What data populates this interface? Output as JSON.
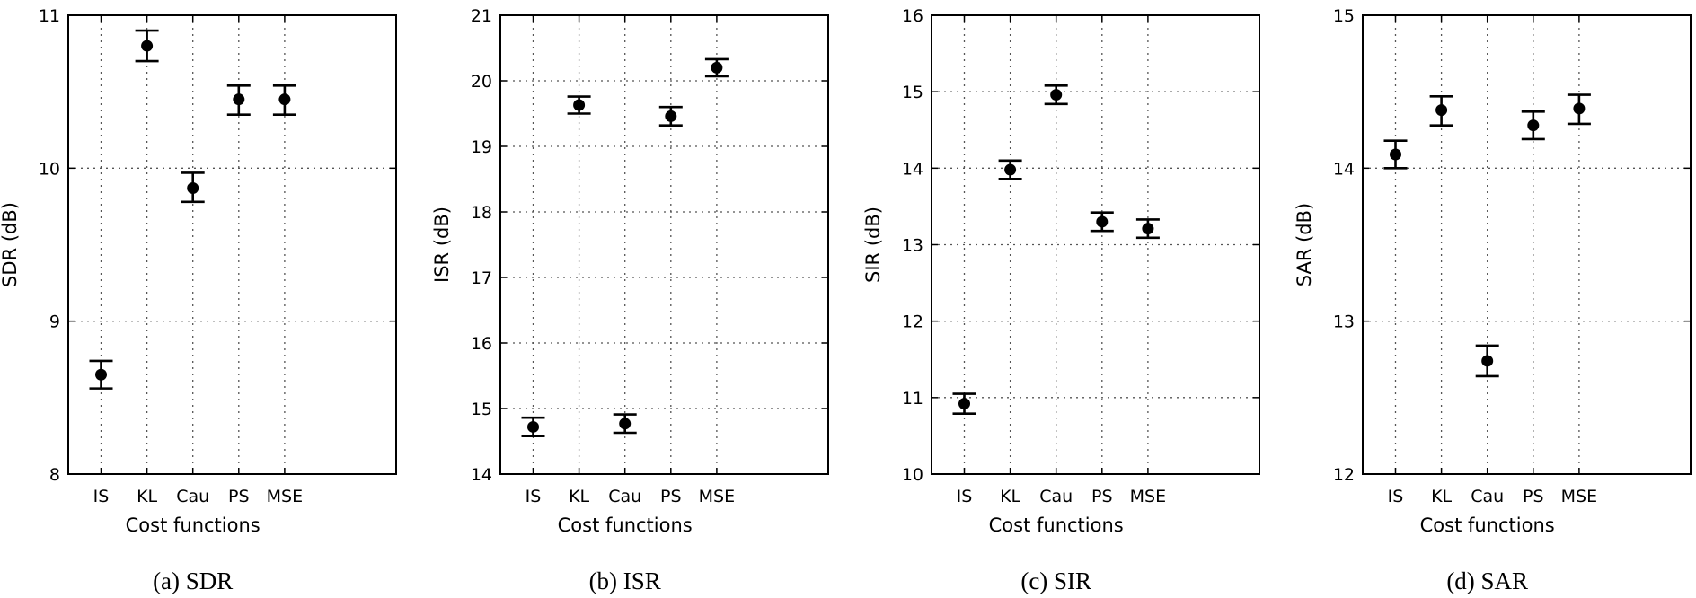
{
  "chart_data": [
    {
      "type": "scatter",
      "caption": "(a) SDR",
      "xlabel": "Cost functions",
      "ylabel": "SDR (dB)",
      "categories": [
        "IS",
        "KL",
        "Cau",
        "PS",
        "MSE"
      ],
      "ylim": [
        8,
        11
      ],
      "yticks": [
        8,
        9,
        10,
        11
      ],
      "grid": true,
      "series": [
        {
          "values": [
            8.65,
            10.8,
            9.87,
            10.45,
            10.45
          ],
          "err_low": [
            8.56,
            10.7,
            9.78,
            10.35,
            10.35
          ],
          "err_high": [
            8.74,
            10.9,
            9.97,
            10.54,
            10.54
          ]
        }
      ]
    },
    {
      "type": "scatter",
      "caption": "(b) ISR",
      "xlabel": "Cost functions",
      "ylabel": "ISR (dB)",
      "categories": [
        "IS",
        "KL",
        "Cau",
        "PS",
        "MSE"
      ],
      "ylim": [
        14,
        21
      ],
      "yticks": [
        14,
        15,
        16,
        17,
        18,
        19,
        20,
        21
      ],
      "grid": true,
      "series": [
        {
          "values": [
            14.72,
            19.63,
            14.77,
            19.46,
            20.2
          ],
          "err_low": [
            14.58,
            19.5,
            14.63,
            19.32,
            20.07
          ],
          "err_high": [
            14.86,
            19.76,
            14.91,
            19.6,
            20.33
          ]
        }
      ]
    },
    {
      "type": "scatter",
      "caption": "(c) SIR",
      "xlabel": "Cost functions",
      "ylabel": "SIR (dB)",
      "categories": [
        "IS",
        "KL",
        "Cau",
        "PS",
        "MSE"
      ],
      "ylim": [
        10,
        16
      ],
      "yticks": [
        10,
        11,
        12,
        13,
        14,
        15,
        16
      ],
      "grid": true,
      "series": [
        {
          "values": [
            10.92,
            13.98,
            14.96,
            13.3,
            13.21
          ],
          "err_low": [
            10.79,
            13.86,
            14.84,
            13.18,
            13.09
          ],
          "err_high": [
            11.05,
            14.1,
            15.08,
            13.42,
            13.33
          ]
        }
      ]
    },
    {
      "type": "scatter",
      "caption": "(d) SAR",
      "xlabel": "Cost functions",
      "ylabel": "SAR (dB)",
      "categories": [
        "IS",
        "KL",
        "Cau",
        "PS",
        "MSE"
      ],
      "ylim": [
        12,
        15
      ],
      "yticks": [
        12,
        13,
        14,
        15
      ],
      "grid": true,
      "series": [
        {
          "values": [
            14.09,
            14.38,
            12.74,
            14.28,
            14.39
          ],
          "err_low": [
            14.0,
            14.28,
            12.64,
            14.19,
            14.29
          ],
          "err_high": [
            14.18,
            14.47,
            12.84,
            14.37,
            14.48
          ]
        }
      ]
    }
  ]
}
